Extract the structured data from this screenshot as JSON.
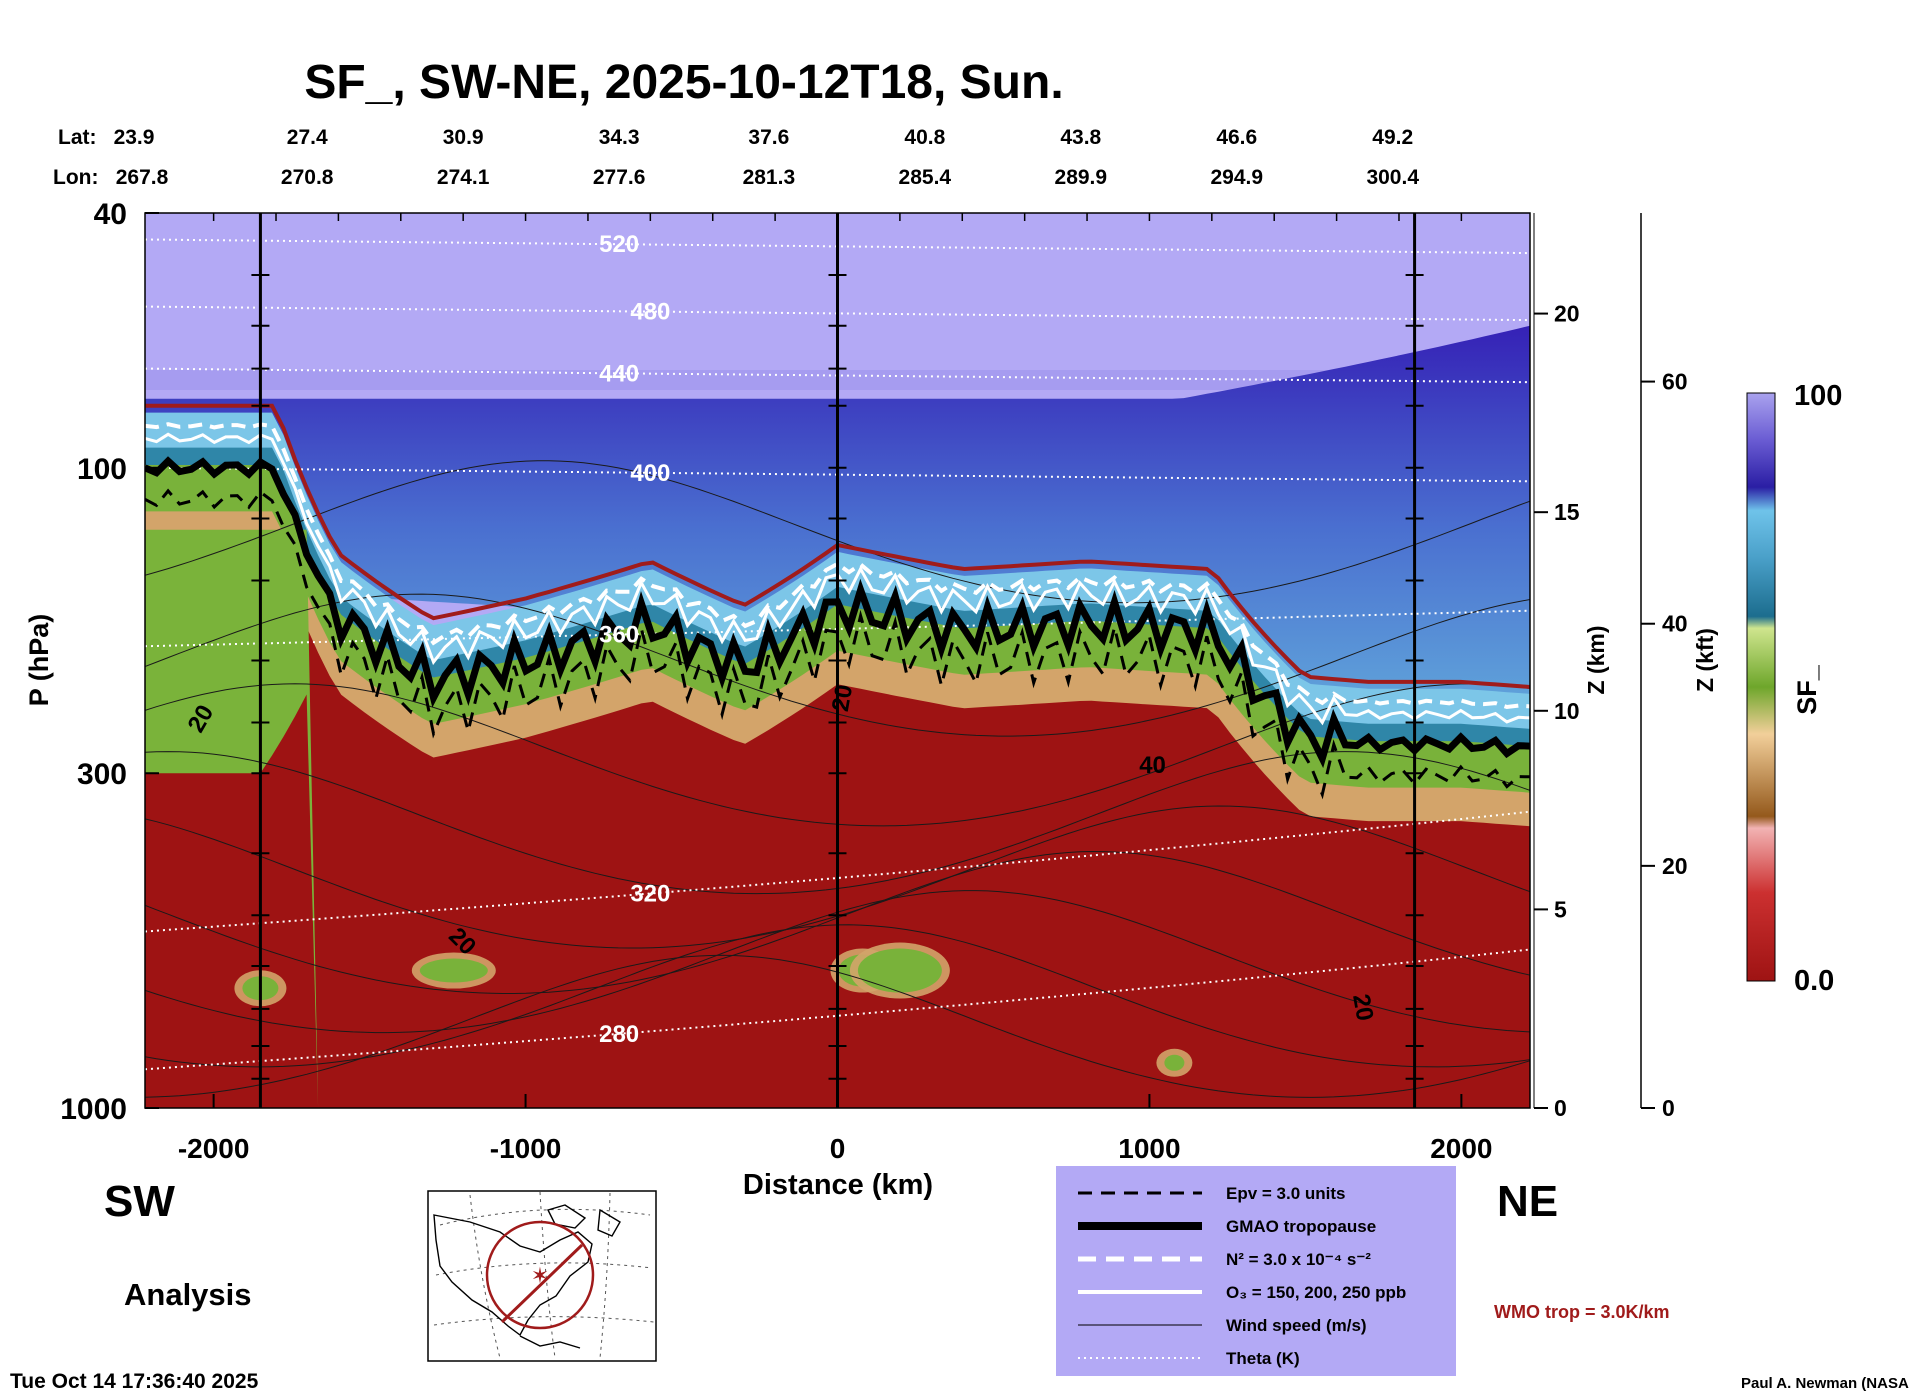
{
  "chart_data": {
    "type": "heatmap",
    "title": "SF_, SW-NE, 2025-10-12T18, Sun.",
    "xlabel": "Distance (km)",
    "ylabel": "P (hPa)",
    "right_axis_1_label": "Z (km)",
    "right_axis_2_label": "Z (kft)",
    "colorbar_label": "SF_",
    "xlim": [
      -2220,
      2220
    ],
    "ylim": [
      1000,
      40
    ],
    "y_scale": "log",
    "x_ticks": [
      "-2000",
      "-1000",
      "0",
      "1000",
      "2000"
    ],
    "x_tick_values": [
      -2000,
      -1000,
      0,
      1000,
      2000
    ],
    "y_ticks": [
      "40",
      "100",
      "300",
      "1000"
    ],
    "y_tick_values": [
      40,
      100,
      300,
      1000
    ],
    "z_km_ticks": [
      "0",
      "5",
      "10",
      "15",
      "20"
    ],
    "z_km_values": [
      0,
      5,
      10,
      15,
      20
    ],
    "z_kft_ticks": [
      "0",
      "20",
      "40",
      "60"
    ],
    "z_kft_values": [
      0,
      20,
      40,
      60
    ],
    "colorbar": {
      "max_label": "100",
      "min_label": "0.0",
      "min": 0,
      "max": 100
    },
    "lat_label": "Lat:",
    "lon_label": "Lon:",
    "lat_values": [
      "23.9",
      "27.4",
      "30.9",
      "34.3",
      "37.6",
      "40.8",
      "43.8",
      "46.6",
      "49.2"
    ],
    "lon_values": [
      "267.8",
      "270.8",
      "274.1",
      "277.6",
      "281.3",
      "285.4",
      "289.9",
      "294.9",
      "300.4"
    ],
    "lat_lon_distance": [
      -2200,
      -1700,
      -1200,
      -700,
      -220,
      280,
      780,
      1280,
      1780
    ],
    "vertical_marker_distances": [
      -1850,
      0,
      1850
    ],
    "theta_contours": [
      {
        "label": "520",
        "pressure": 44
      },
      {
        "label": "480",
        "pressure": 56
      },
      {
        "label": "440",
        "pressure": 70
      },
      {
        "label": "400",
        "pressure": 100
      },
      {
        "label": "360",
        "pressure": 190
      },
      {
        "label": "320",
        "pressure": 530
      },
      {
        "label": "280",
        "pressure": 870
      }
    ],
    "wind_contour_labels": [
      "20",
      "20",
      "40",
      "20",
      "20"
    ],
    "tropopause_pressure": {
      "x": [
        -2220,
        -1800,
        -1600,
        -1300,
        -1000,
        -600,
        -300,
        0,
        400,
        800,
        1200,
        1500,
        1700,
        2000,
        2220
      ],
      "p": [
        100,
        100,
        170,
        215,
        200,
        175,
        205,
        165,
        180,
        175,
        180,
        265,
        270,
        270,
        275
      ]
    },
    "legend": [
      {
        "label": "Epv = 3.0 units",
        "style": "black-dashed"
      },
      {
        "label": "GMAO tropopause",
        "style": "black-thick"
      },
      {
        "label": "N² = 3.0 x 10⁻⁴ s⁻²",
        "style": "white-dashed"
      },
      {
        "label": "O₃ = 150, 200, 250 ppb",
        "style": "white-solid"
      },
      {
        "label": "Wind speed (m/s)",
        "style": "black-thin"
      },
      {
        "label": "Theta (K)",
        "style": "white-dotted"
      }
    ],
    "wmo_label": "WMO trop = 3.0K/km",
    "colors": {
      "plot_background_upper": "#b3a9f5",
      "high_band": "#3b2ab8",
      "mid_blue": "#5aa9da",
      "green": "#7ab33a",
      "tan": "#c89a5c",
      "dark_red": "#9e1313",
      "legend_bg": "#b3a9f5",
      "wmo_red": "#a01b1b"
    }
  },
  "labels": {
    "sw": "SW",
    "ne": "NE",
    "analysis": "Analysis",
    "timestamp": "Tue Oct 14 17:36:40 2025",
    "credit": "Paul A. Newman (NASA"
  }
}
